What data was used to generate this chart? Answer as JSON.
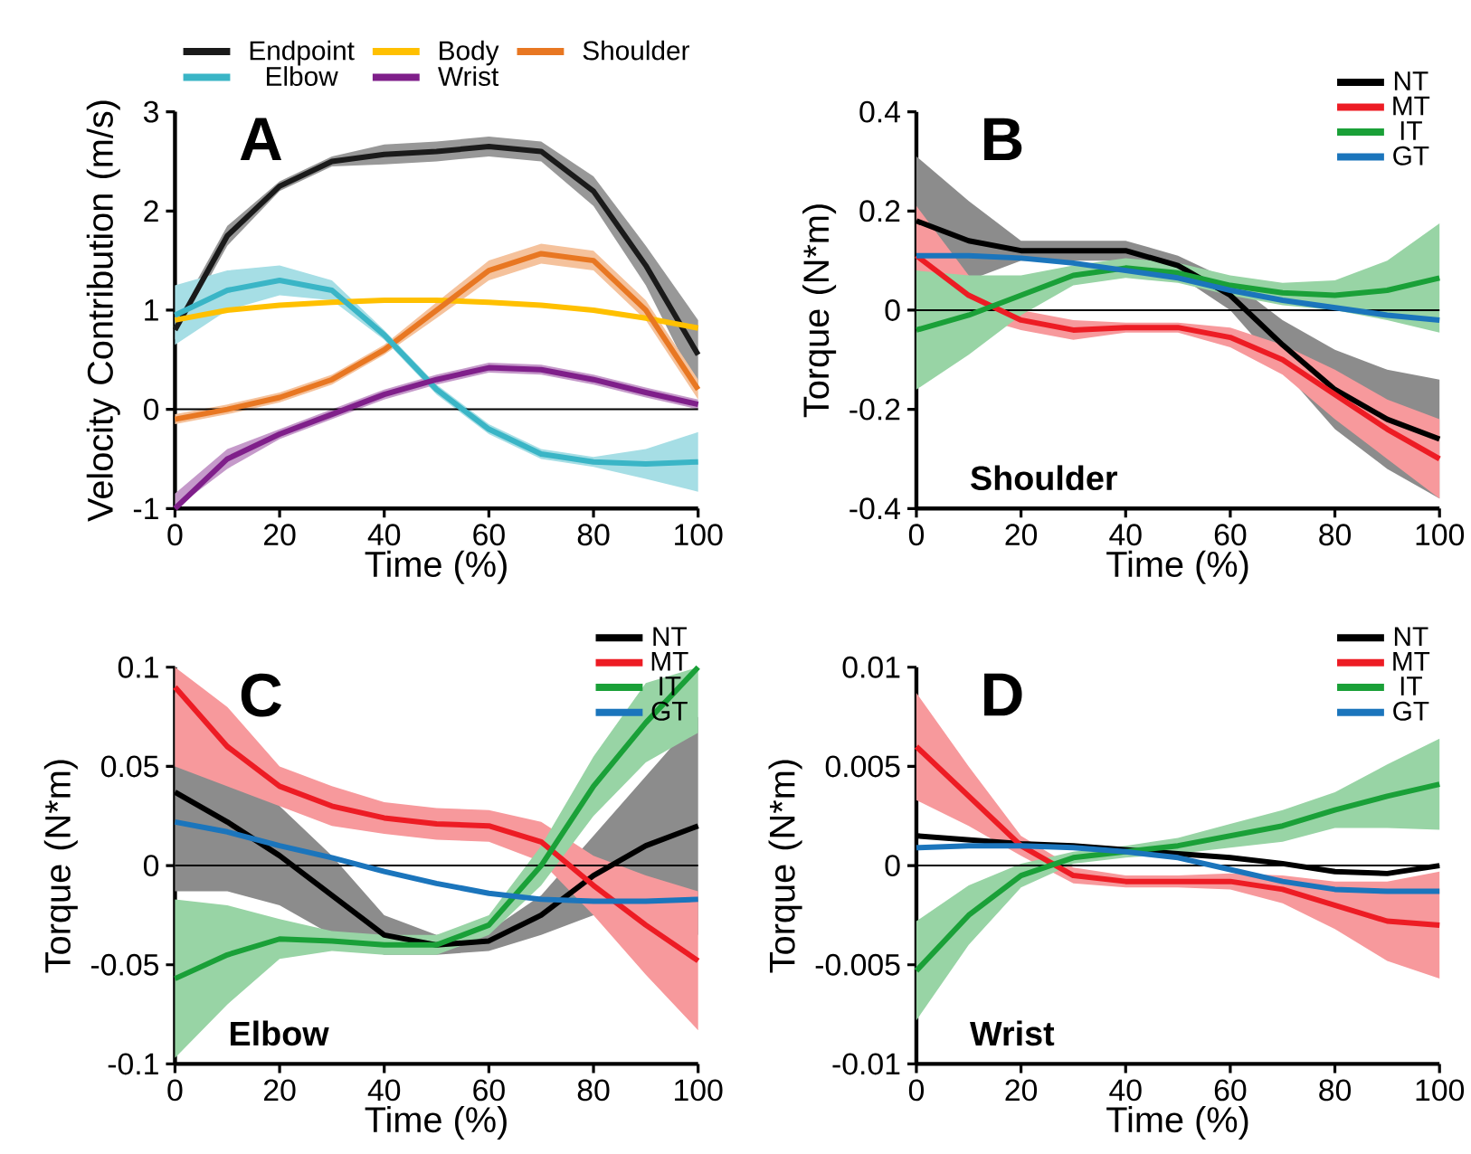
{
  "chart_data": [
    {
      "type": "line",
      "xlabel": "Time (%)",
      "ylabel": "Velocity Contribution (m/s)",
      "xlim": [
        0,
        100
      ],
      "xticks": [
        0,
        20,
        40,
        60,
        80,
        100
      ],
      "ylim": [
        -1,
        3
      ],
      "yticks": [
        -1,
        0,
        1,
        2,
        3
      ],
      "legend": "top",
      "annotations": [
        "A"
      ],
      "ref_lines": [
        {
          "axis": "y",
          "value": 0
        }
      ],
      "x": [
        0,
        10,
        20,
        30,
        40,
        50,
        60,
        70,
        80,
        90,
        100
      ],
      "series": [
        {
          "name": "Endpoint",
          "color": "#1a1a1a",
          "values": [
            0.8,
            1.75,
            2.25,
            2.5,
            2.57,
            2.6,
            2.65,
            2.6,
            2.2,
            1.45,
            0.55
          ],
          "lower": [
            0.7,
            1.65,
            2.2,
            2.45,
            2.47,
            2.5,
            2.55,
            2.5,
            2.05,
            1.25,
            0.2
          ],
          "upper": [
            0.9,
            1.85,
            2.3,
            2.55,
            2.67,
            2.7,
            2.75,
            2.7,
            2.35,
            1.65,
            0.9
          ]
        },
        {
          "name": "Body",
          "color": "#ffc000",
          "values": [
            0.9,
            1.0,
            1.05,
            1.08,
            1.1,
            1.1,
            1.08,
            1.05,
            1.0,
            0.92,
            0.82
          ]
        },
        {
          "name": "Shoulder",
          "color": "#e87722",
          "values": [
            -0.1,
            0,
            0.12,
            0.3,
            0.6,
            1.0,
            1.4,
            1.57,
            1.5,
            1.0,
            0.2
          ],
          "lower": [
            -0.15,
            -0.05,
            0.07,
            0.25,
            0.55,
            0.92,
            1.3,
            1.47,
            1.4,
            0.9,
            0.1
          ],
          "upper": [
            -0.05,
            0.05,
            0.17,
            0.35,
            0.65,
            1.08,
            1.5,
            1.67,
            1.6,
            1.1,
            0.3
          ]
        },
        {
          "name": "Elbow",
          "color": "#3ab5c6",
          "values": [
            0.95,
            1.2,
            1.3,
            1.2,
            0.75,
            0.2,
            -0.2,
            -0.45,
            -0.53,
            -0.55,
            -0.53
          ],
          "lower": [
            0.65,
            1.0,
            1.15,
            1.1,
            0.7,
            0.15,
            -0.25,
            -0.5,
            -0.58,
            -0.7,
            -0.83
          ],
          "upper": [
            1.25,
            1.4,
            1.45,
            1.3,
            0.8,
            0.25,
            -0.15,
            -0.4,
            -0.48,
            -0.4,
            -0.23
          ]
        },
        {
          "name": "Wrist",
          "color": "#7f1f8a",
          "values": [
            -1.0,
            -0.5,
            -0.25,
            -0.05,
            0.15,
            0.3,
            0.42,
            0.4,
            0.3,
            0.17,
            0.05
          ],
          "lower": [
            -1.0,
            -0.6,
            -0.3,
            -0.1,
            0.1,
            0.25,
            0.37,
            0.35,
            0.25,
            0.12,
            0.0
          ],
          "upper": [
            -0.85,
            -0.4,
            -0.2,
            0.0,
            0.2,
            0.35,
            0.47,
            0.45,
            0.35,
            0.22,
            0.1
          ]
        }
      ]
    },
    {
      "type": "line",
      "xlabel": "Time (%)",
      "ylabel": "Torque (N*m)",
      "xlim": [
        0,
        100
      ],
      "xticks": [
        0,
        20,
        40,
        60,
        80,
        100
      ],
      "ylim": [
        -0.4,
        0.4
      ],
      "yticks": [
        -0.4,
        -0.2,
        0,
        0.2,
        0.4
      ],
      "legend": "top right",
      "annotations": [
        "B",
        "Shoulder"
      ],
      "ref_lines": [
        {
          "axis": "y",
          "value": 0
        }
      ],
      "x": [
        0,
        10,
        20,
        30,
        40,
        50,
        60,
        70,
        80,
        90,
        100
      ],
      "series": [
        {
          "name": "NT",
          "color": "#000000",
          "values": [
            0.18,
            0.14,
            0.12,
            0.12,
            0.12,
            0.09,
            0.03,
            -0.07,
            -0.16,
            -0.22,
            -0.26
          ],
          "lower": [
            0.05,
            0.06,
            0.1,
            0.1,
            0.1,
            0.07,
            0.0,
            -0.12,
            -0.24,
            -0.32,
            -0.38
          ],
          "upper": [
            0.31,
            0.22,
            0.14,
            0.14,
            0.14,
            0.11,
            0.06,
            -0.02,
            -0.08,
            -0.12,
            -0.14
          ]
        },
        {
          "name": "MT",
          "color": "#ed1c24",
          "values": [
            0.11,
            0.03,
            -0.02,
            -0.04,
            -0.035,
            -0.035,
            -0.055,
            -0.1,
            -0.17,
            -0.24,
            -0.3
          ],
          "lower": [
            0.01,
            -0.01,
            -0.04,
            -0.06,
            -0.045,
            -0.045,
            -0.075,
            -0.13,
            -0.22,
            -0.3,
            -0.38
          ],
          "upper": [
            0.21,
            0.07,
            0.0,
            -0.02,
            -0.025,
            -0.025,
            -0.035,
            -0.07,
            -0.12,
            -0.18,
            -0.22
          ]
        },
        {
          "name": "IT",
          "color": "#1aa038",
          "values": [
            -0.04,
            -0.01,
            0.03,
            0.07,
            0.085,
            0.075,
            0.05,
            0.035,
            0.03,
            0.04,
            0.065
          ],
          "lower": [
            -0.16,
            -0.09,
            -0.01,
            0.05,
            0.065,
            0.055,
            0.03,
            0.01,
            0.0,
            -0.02,
            -0.045
          ],
          "upper": [
            0.08,
            0.07,
            0.07,
            0.09,
            0.105,
            0.095,
            0.07,
            0.055,
            0.06,
            0.1,
            0.175
          ]
        },
        {
          "name": "GT",
          "color": "#1b75bc",
          "values": [
            0.11,
            0.11,
            0.105,
            0.095,
            0.08,
            0.065,
            0.04,
            0.02,
            0.005,
            -0.01,
            -0.02
          ]
        }
      ]
    },
    {
      "type": "line",
      "xlabel": "Time (%)",
      "ylabel": "Torque (N*m)",
      "xlim": [
        0,
        100
      ],
      "xticks": [
        0,
        20,
        40,
        60,
        80,
        100
      ],
      "ylim": [
        -0.1,
        0.1
      ],
      "yticks": [
        -0.1,
        -0.05,
        0,
        0.05,
        0.1
      ],
      "legend": "top right",
      "annotations": [
        "C",
        "Elbow"
      ],
      "ref_lines": [
        {
          "axis": "y",
          "value": 0
        }
      ],
      "x": [
        0,
        10,
        20,
        30,
        40,
        50,
        60,
        70,
        80,
        90,
        100
      ],
      "series": [
        {
          "name": "NT",
          "color": "#000000",
          "values": [
            0.037,
            0.022,
            0.005,
            -0.015,
            -0.035,
            -0.04,
            -0.038,
            -0.025,
            -0.005,
            0.01,
            0.02
          ],
          "lower": [
            -0.013,
            -0.013,
            -0.02,
            -0.035,
            -0.045,
            -0.045,
            -0.043,
            -0.035,
            -0.025,
            -0.025,
            -0.035
          ],
          "upper": [
            0.087,
            0.057,
            0.03,
            0.005,
            -0.025,
            -0.035,
            -0.033,
            -0.015,
            0.015,
            0.045,
            0.075
          ]
        },
        {
          "name": "MT",
          "color": "#ed1c24",
          "values": [
            0.09,
            0.06,
            0.04,
            0.03,
            0.024,
            0.021,
            0.02,
            0.012,
            -0.01,
            -0.03,
            -0.048
          ],
          "lower": [
            0.05,
            0.04,
            0.03,
            0.02,
            0.016,
            0.013,
            0.012,
            0.002,
            -0.025,
            -0.055,
            -0.083
          ],
          "upper": [
            0.1,
            0.08,
            0.05,
            0.04,
            0.032,
            0.029,
            0.028,
            0.022,
            0.005,
            -0.005,
            -0.013
          ]
        },
        {
          "name": "IT",
          "color": "#1aa038",
          "values": [
            -0.057,
            -0.045,
            -0.037,
            -0.038,
            -0.04,
            -0.04,
            -0.03,
            0.0,
            0.04,
            0.072,
            0.1
          ],
          "lower": [
            -0.097,
            -0.07,
            -0.047,
            -0.043,
            -0.045,
            -0.045,
            -0.035,
            -0.01,
            0.025,
            0.052,
            0.067
          ],
          "upper": [
            -0.017,
            -0.02,
            -0.027,
            -0.033,
            -0.035,
            -0.035,
            -0.025,
            0.01,
            0.055,
            0.092,
            0.1
          ]
        },
        {
          "name": "GT",
          "color": "#1b75bc",
          "values": [
            0.022,
            0.017,
            0.01,
            0.004,
            -0.003,
            -0.009,
            -0.014,
            -0.017,
            -0.018,
            -0.018,
            -0.017
          ]
        }
      ]
    },
    {
      "type": "line",
      "xlabel": "Time (%)",
      "ylabel": "Torque (N*m)",
      "xlim": [
        0,
        100
      ],
      "xticks": [
        0,
        20,
        40,
        60,
        80,
        100
      ],
      "ylim": [
        -0.01,
        0.01
      ],
      "yticks": [
        -0.01,
        -0.005,
        0,
        0.005,
        0.01
      ],
      "legend": "top right",
      "annotations": [
        "D",
        "Wrist"
      ],
      "ref_lines": [
        {
          "axis": "y",
          "value": 0
        }
      ],
      "x": [
        0,
        10,
        20,
        30,
        40,
        50,
        60,
        70,
        80,
        90,
        100
      ],
      "series": [
        {
          "name": "NT",
          "color": "#000000",
          "values": [
            0.0015,
            0.0013,
            0.0011,
            0.001,
            0.0008,
            0.0006,
            0.0004,
            0.0001,
            -0.0003,
            -0.0004,
            0.0
          ]
        },
        {
          "name": "MT",
          "color": "#ed1c24",
          "values": [
            0.006,
            0.0035,
            0.001,
            -0.0005,
            -0.0008,
            -0.0008,
            -0.0008,
            -0.0012,
            -0.002,
            -0.0028,
            -0.003
          ],
          "lower": [
            0.0033,
            0.002,
            0.0005,
            -0.0009,
            -0.0011,
            -0.0011,
            -0.0012,
            -0.0019,
            -0.0032,
            -0.0048,
            -0.0057
          ],
          "upper": [
            0.0087,
            0.005,
            0.0015,
            -0.0001,
            -0.0005,
            -0.0005,
            -0.0004,
            -0.0005,
            -0.0008,
            -0.0008,
            -0.0003
          ]
        },
        {
          "name": "IT",
          "color": "#1aa038",
          "values": [
            -0.0053,
            -0.0025,
            -0.0005,
            0.0004,
            0.0007,
            0.001,
            0.0015,
            0.002,
            0.0028,
            0.0035,
            0.0041
          ],
          "lower": [
            -0.0078,
            -0.004,
            -0.0011,
            0.0001,
            0.0004,
            0.0006,
            0.0009,
            0.0012,
            0.0019,
            0.0019,
            0.0018
          ],
          "upper": [
            -0.0028,
            -0.001,
            0.0001,
            0.0007,
            0.001,
            0.0014,
            0.0021,
            0.0028,
            0.0037,
            0.0051,
            0.0064
          ]
        },
        {
          "name": "GT",
          "color": "#1b75bc",
          "values": [
            0.0009,
            0.001,
            0.001,
            0.0009,
            0.0007,
            0.0004,
            -0.0002,
            -0.0008,
            -0.0012,
            -0.0013,
            -0.0013
          ]
        }
      ]
    }
  ]
}
